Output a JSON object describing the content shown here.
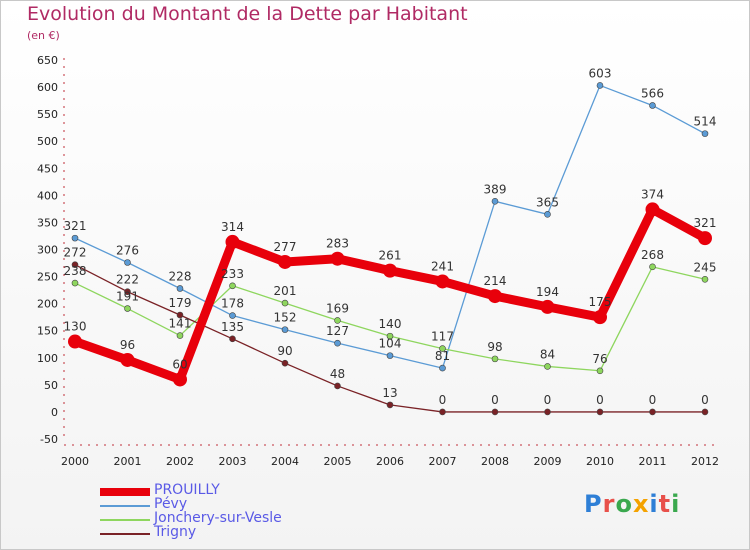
{
  "title": "Evolution du Montant de la Dette par Habitant",
  "subtitle": "(en €)",
  "logo": {
    "text": "Proxiti",
    "colors": [
      "#2e7fd6",
      "#e8504a",
      "#3aa84e",
      "#f4a200",
      "#2e7fd6",
      "#e8504a",
      "#3aa84e"
    ]
  },
  "chart_data": {
    "type": "line",
    "title": "Evolution du Montant de la Dette par Habitant",
    "subtitle": "(en €)",
    "xlabel": "",
    "ylabel": "",
    "ylim": [
      -50,
      650
    ],
    "yticks": [
      -50,
      0,
      50,
      100,
      150,
      200,
      250,
      300,
      350,
      400,
      450,
      500,
      550,
      600,
      650
    ],
    "x": [
      "2000",
      "2001",
      "2002",
      "2003",
      "2004",
      "2005",
      "2006",
      "2007",
      "2008",
      "2009",
      "2010",
      "2011",
      "2012"
    ],
    "grid": false,
    "legend_position": "bottom-left",
    "series": [
      {
        "name": "PROUILLY",
        "color": "#e8000b",
        "values": [
          130,
          96,
          60,
          314,
          277,
          283,
          261,
          241,
          214,
          194,
          175,
          374,
          321
        ],
        "labels": [
          "130",
          "96",
          "60",
          "314",
          "277",
          "283",
          "261",
          "241",
          "214",
          "194",
          "175",
          "374",
          "321"
        ]
      },
      {
        "name": "Pévy",
        "color": "#5b9bd5",
        "values": [
          321,
          276,
          228,
          178,
          152,
          127,
          104,
          81,
          389,
          365,
          603,
          566,
          514
        ],
        "labels": [
          "321",
          "276",
          "228",
          "178",
          "152",
          "127",
          "104",
          "81",
          "389",
          "365",
          "603",
          "566",
          "514"
        ]
      },
      {
        "name": "Jonchery-sur-Vesle",
        "color": "#8ed65e",
        "values": [
          238,
          191,
          141,
          233,
          201,
          169,
          140,
          117,
          98,
          84,
          76,
          268,
          245
        ],
        "labels": [
          "238",
          "191",
          "141",
          "233",
          "201",
          "169",
          "140",
          "117",
          "98",
          "84",
          "76",
          "268",
          "245"
        ]
      },
      {
        "name": "Trigny",
        "color": "#7a2226",
        "values": [
          272,
          222,
          179,
          135,
          90,
          48,
          13,
          0,
          0,
          0,
          0,
          0,
          0
        ],
        "labels": [
          "272",
          "222",
          "179",
          "135",
          "90",
          "48",
          "13",
          "0",
          "0",
          "0",
          "0",
          "0",
          "0"
        ]
      }
    ]
  }
}
